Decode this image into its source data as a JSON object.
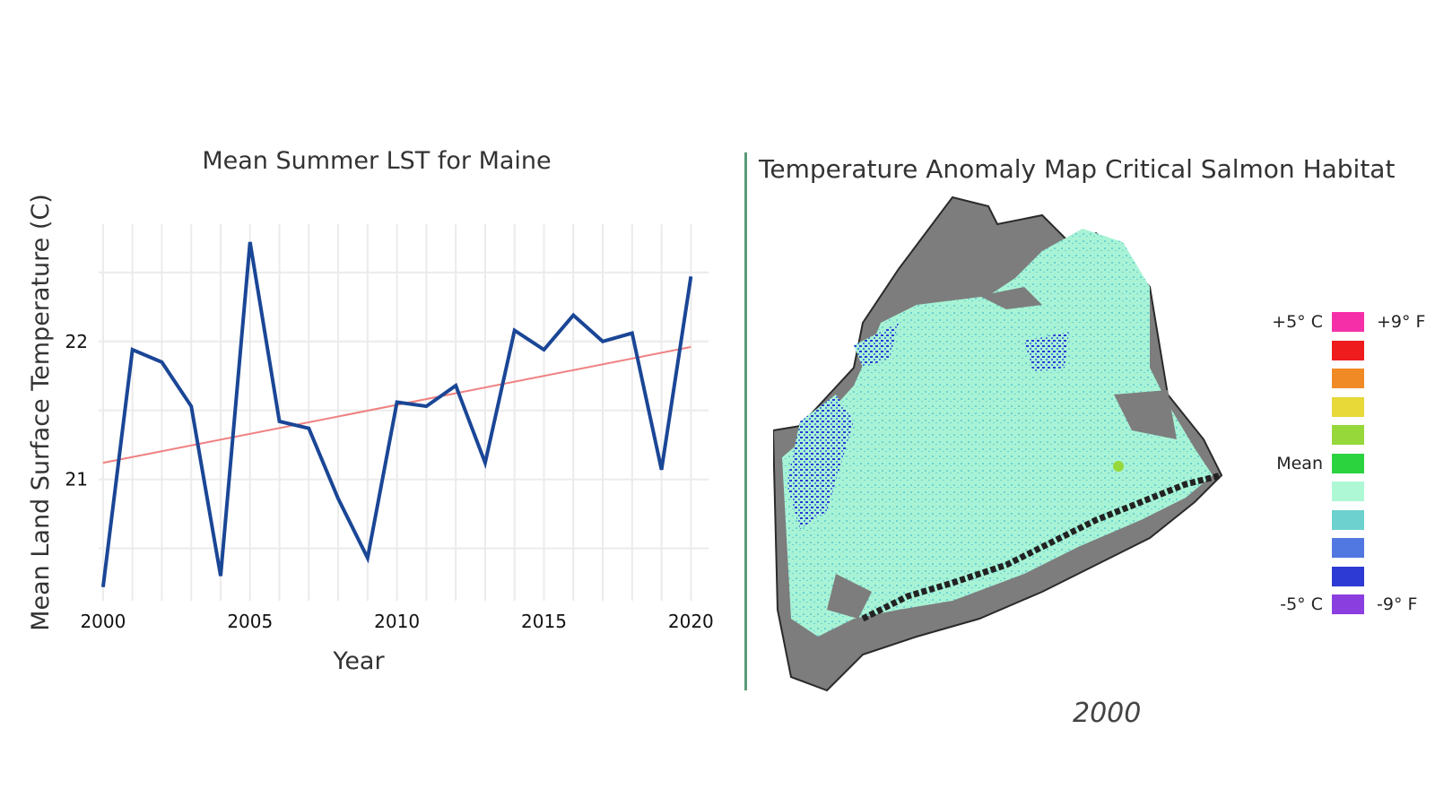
{
  "chart_data": {
    "type": "line",
    "title": "Mean Summer LST for Maine",
    "xlabel": "Year",
    "ylabel": "Mean Land Surface Temperature (C)",
    "x": [
      2000,
      2001,
      2002,
      2003,
      2004,
      2005,
      2006,
      2007,
      2008,
      2009,
      2010,
      2011,
      2012,
      2013,
      2014,
      2015,
      2016,
      2017,
      2018,
      2019,
      2020
    ],
    "series": [
      {
        "values": [
          20.22,
          21.94,
          21.85,
          21.53,
          20.3,
          22.72,
          21.42,
          21.37,
          20.86,
          20.43,
          21.56,
          21.53,
          21.68,
          21.12,
          22.08,
          21.94,
          22.19,
          22.0,
          22.06,
          21.07,
          22.47
        ],
        "color": "#1a4696"
      }
    ],
    "trend": {
      "values": [
        21.12,
        21.96
      ],
      "color": "#f08080"
    },
    "xticks": [
      2000,
      2005,
      2010,
      2015,
      2020
    ],
    "yticks": [
      21,
      22
    ],
    "xlim": [
      1999.85,
      2020.6
    ],
    "ylim": [
      20.12,
      22.85
    ],
    "grid": true
  },
  "map": {
    "title": "Temperature Anomaly Map Critical Salmon Habitat",
    "year": "2000",
    "legend": [
      {
        "left": "+5° C",
        "right": "+9° F",
        "color": "#f52fa8"
      },
      {
        "left": "",
        "right": "",
        "color": "#ee1c1c"
      },
      {
        "left": "",
        "right": "",
        "color": "#f08a24"
      },
      {
        "left": "",
        "right": "",
        "color": "#e8d838"
      },
      {
        "left": "",
        "right": "",
        "color": "#96d83a"
      },
      {
        "left": "Mean",
        "right": "",
        "color": "#2bd33f"
      },
      {
        "left": "",
        "right": "",
        "color": "#aef8d6"
      },
      {
        "left": "",
        "right": "",
        "color": "#6dd1cf"
      },
      {
        "left": "",
        "right": "",
        "color": "#5178e0"
      },
      {
        "left": "",
        "right": "",
        "color": "#2d3ad4"
      },
      {
        "left": "-5° C",
        "right": "-9° F",
        "color": "#8a3ee0"
      }
    ]
  }
}
